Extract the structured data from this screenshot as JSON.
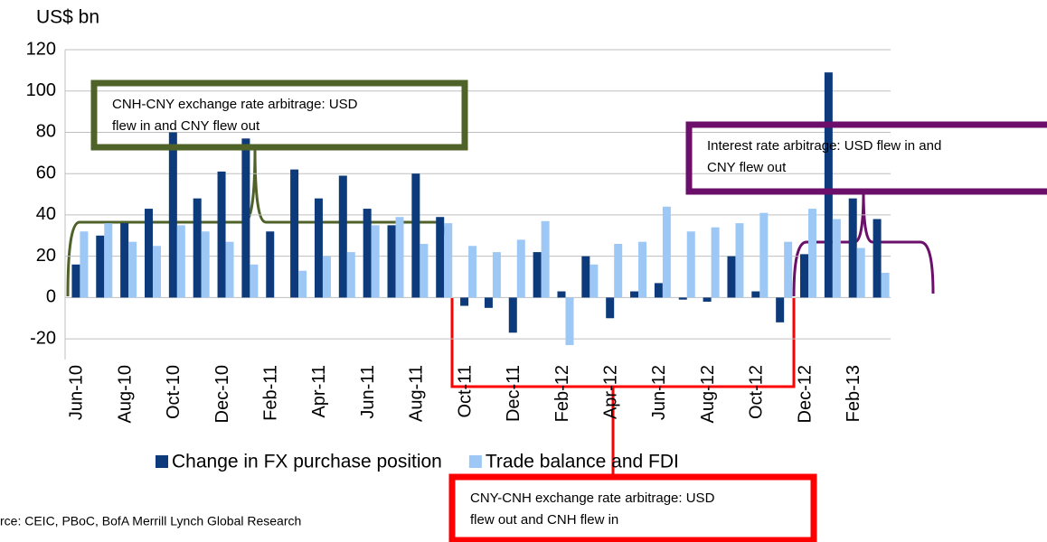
{
  "chart_data": {
    "type": "bar",
    "y_label": "US$ bn",
    "categories": [
      "Jun-10",
      null,
      "Aug-10",
      null,
      "Oct-10",
      null,
      "Dec-10",
      null,
      "Feb-11",
      null,
      "Apr-11",
      null,
      "Jun-11",
      null,
      "Aug-11",
      null,
      "Oct-11",
      null,
      "Dec-11",
      null,
      "Feb-12",
      null,
      "Apr-12",
      null,
      "Jun-12",
      null,
      "Aug-12",
      null,
      "Oct-12",
      null,
      "Dec-12",
      null,
      "Feb-13",
      null
    ],
    "series": [
      {
        "name": "Change in FX purchase position",
        "color": "#0d3a7a",
        "values": [
          16,
          30,
          36,
          43,
          80,
          48,
          61,
          77,
          32,
          62,
          48,
          59,
          43,
          35,
          60,
          39,
          -4,
          -5,
          -17,
          22,
          3,
          20,
          -10,
          3,
          7,
          -1,
          -2,
          20,
          3,
          -12,
          21,
          109,
          48,
          38
        ]
      },
      {
        "name": "Trade balance and FDI",
        "color": "#9dc8f5",
        "values": [
          32,
          36,
          27,
          25,
          35,
          32,
          27,
          16,
          0,
          13,
          20,
          22,
          35,
          39,
          26,
          36,
          25,
          22,
          28,
          37,
          -23,
          16,
          26,
          27,
          44,
          32,
          34,
          36,
          41,
          27,
          43,
          38,
          24,
          12
        ]
      }
    ],
    "ylim": [
      -30,
      120
    ],
    "yticks": [
      -20,
      0,
      20,
      40,
      60,
      80,
      100,
      120
    ],
    "grid": true,
    "legend": "bottom",
    "annotations": [
      {
        "lines": [
          "CNH-CNY exchange rate arbitrage: USD",
          "flew in and CNY flew out"
        ],
        "color": "#4f6228"
      },
      {
        "lines": [
          "Interest rate arbitrage: USD flew in and",
          "CNY flew out"
        ],
        "color": "#6b0f6b"
      },
      {
        "lines": [
          "CNY-CNH exchange rate arbitrage: USD",
          "flew out and CNH flew in"
        ],
        "color": "#ff0000"
      }
    ],
    "source": "rce: CEIC, PBoC, BofA Merrill Lynch Global Research"
  }
}
